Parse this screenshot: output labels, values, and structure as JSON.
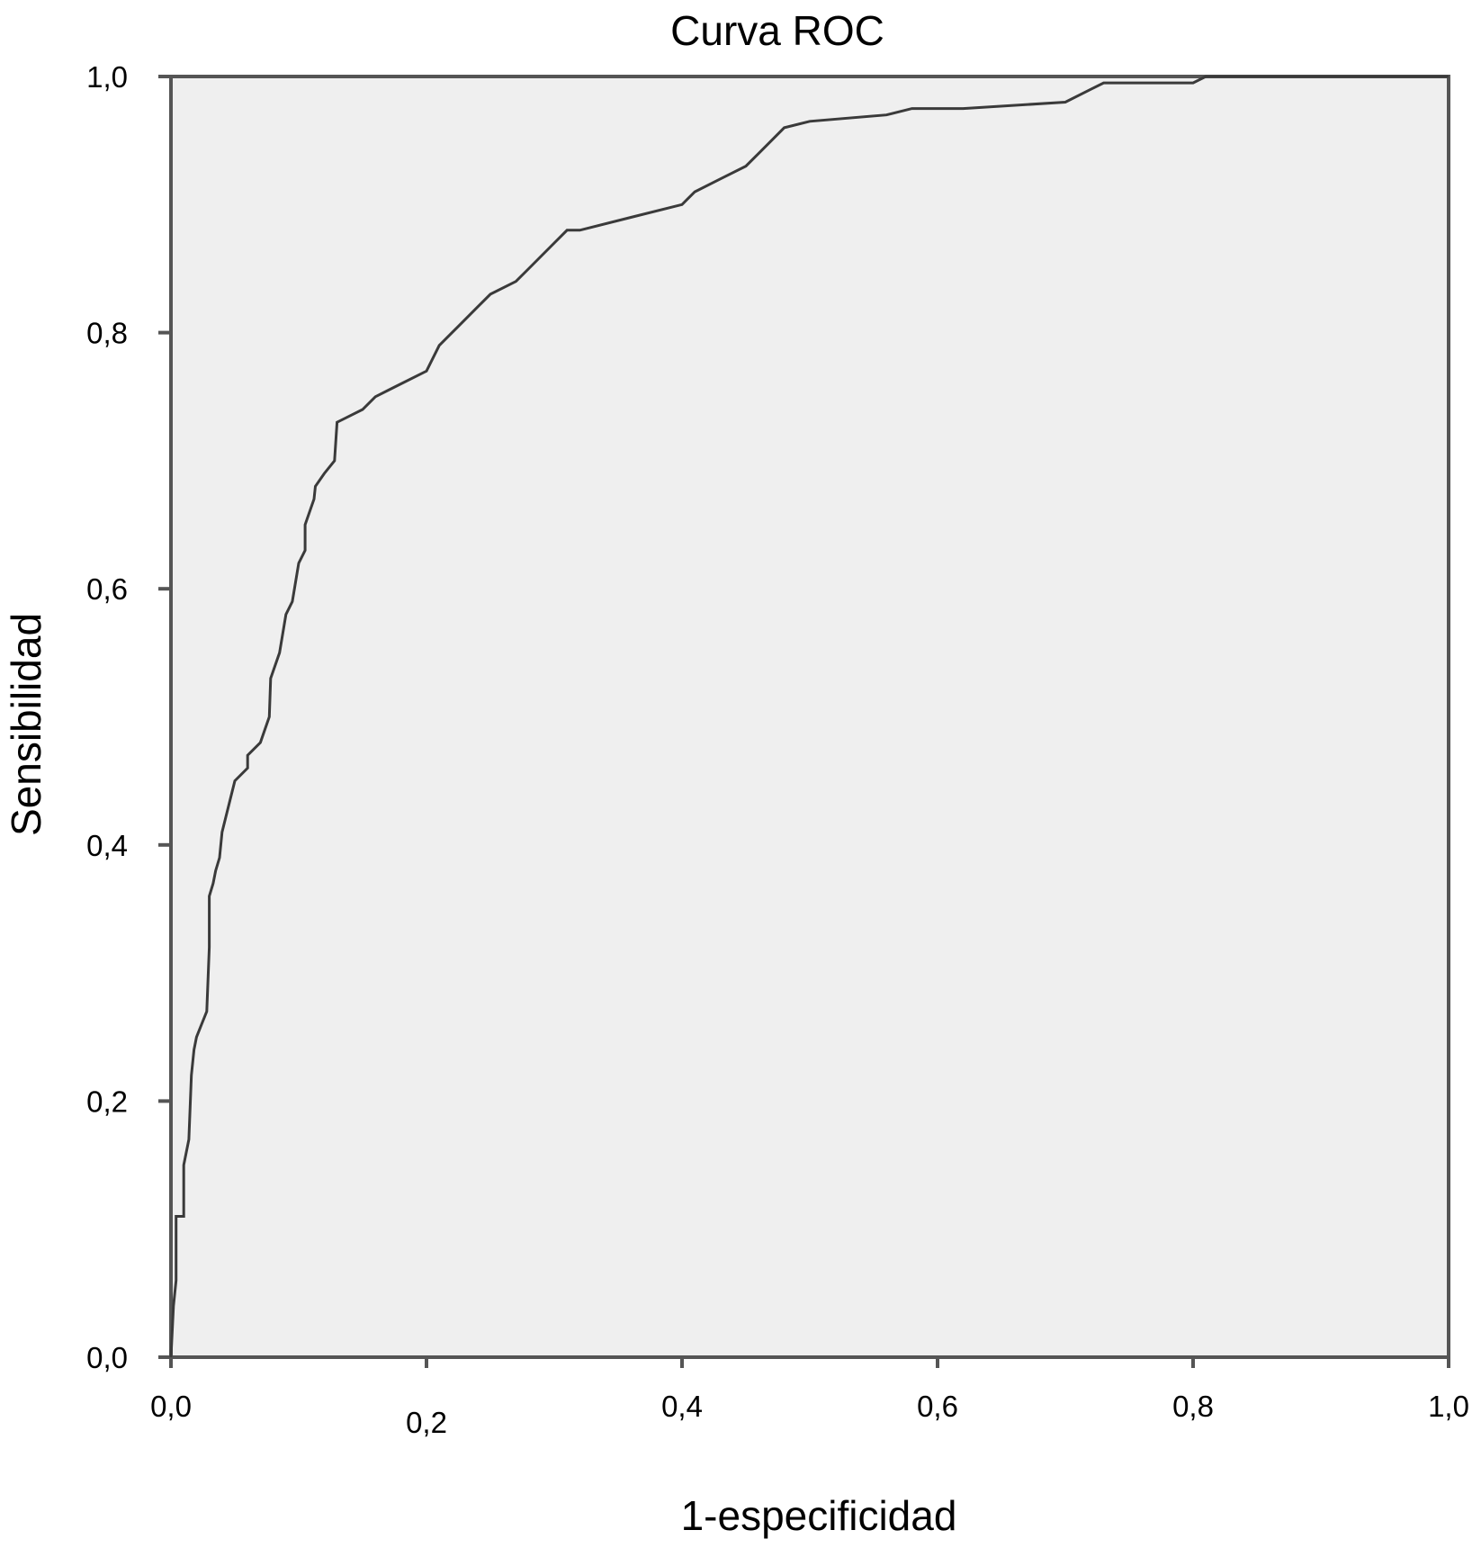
{
  "chart_data": {
    "type": "line",
    "title": "Curva ROC",
    "xlabel": "1-especificidad",
    "ylabel": "Sensibilidad",
    "xlim": [
      0,
      1
    ],
    "ylim": [
      0,
      1
    ],
    "x_ticks": [
      "0,0",
      "0,2",
      "0,4",
      "0,6",
      "0,8",
      "1,0"
    ],
    "y_ticks": [
      "0,0",
      "0,2",
      "0,4",
      "0,6",
      "0,8",
      "1,0"
    ],
    "grid": false,
    "plot_background": "#efefef",
    "line_color": "#3a3a3a",
    "series": [
      {
        "x": [
          0,
          0.002,
          0.004,
          0.004,
          0.01,
          0.01,
          0.014,
          0.016,
          0.018,
          0.02,
          0.024,
          0.028,
          0.03,
          0.03,
          0.033,
          0.035,
          0.038,
          0.04,
          0.045,
          0.05,
          0.06,
          0.06,
          0.07,
          0.077,
          0.078,
          0.085,
          0.09,
          0.095,
          0.1,
          0.105,
          0.105,
          0.112,
          0.113,
          0.12,
          0.128,
          0.13,
          0.15,
          0.16,
          0.17,
          0.18,
          0.2,
          0.21,
          0.22,
          0.24,
          0.25,
          0.27,
          0.28,
          0.3,
          0.31,
          0.32,
          0.36,
          0.4,
          0.41,
          0.43,
          0.45,
          0.46,
          0.47,
          0.48,
          0.5,
          0.56,
          0.58,
          0.62,
          0.7,
          0.72,
          0.73,
          0.8,
          0.81,
          1.0
        ],
        "y": [
          0,
          0.04,
          0.06,
          0.11,
          0.11,
          0.15,
          0.17,
          0.22,
          0.24,
          0.25,
          0.26,
          0.27,
          0.32,
          0.36,
          0.37,
          0.38,
          0.39,
          0.41,
          0.43,
          0.45,
          0.46,
          0.47,
          0.48,
          0.5,
          0.53,
          0.55,
          0.58,
          0.59,
          0.62,
          0.63,
          0.65,
          0.67,
          0.68,
          0.69,
          0.7,
          0.73,
          0.74,
          0.75,
          0.755,
          0.76,
          0.77,
          0.79,
          0.8,
          0.82,
          0.83,
          0.84,
          0.85,
          0.87,
          0.88,
          0.88,
          0.89,
          0.9,
          0.91,
          0.92,
          0.93,
          0.94,
          0.95,
          0.96,
          0.965,
          0.97,
          0.975,
          0.975,
          0.98,
          0.99,
          0.995,
          0.995,
          1.0,
          1.0
        ]
      }
    ]
  }
}
